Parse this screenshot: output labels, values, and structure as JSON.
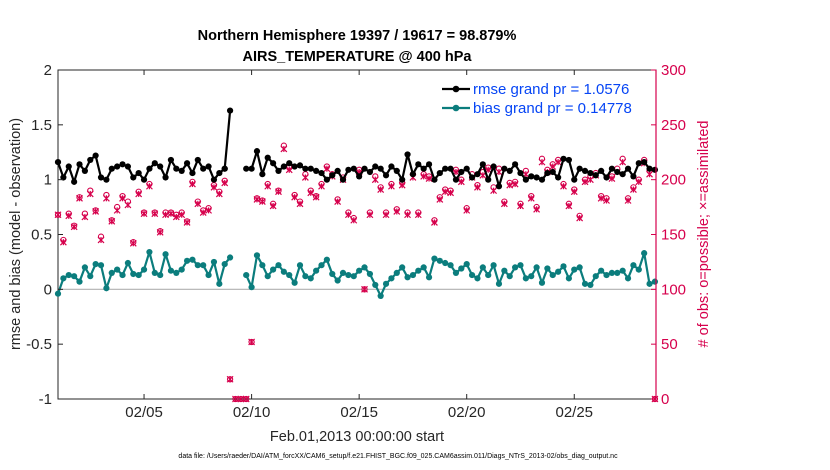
{
  "chart_data": {
    "type": "line",
    "title_line1": "Northern Hemisphere 19397 / 19617 = 98.879%",
    "title_line2": "AIRS_TEMPERATURE @ 400 hPa",
    "xlabel": "Feb.01,2013 00:00:00 start",
    "ylabel": "rmse and bias (model - observation)",
    "ylabel_right": "# of obs: o=possible; ×=assimilated",
    "footnote": "data file: /Users/raeder/DAI/ATM_forcXX/CAM6_setup/f.e21.FHIST_BGC.f09_025.CAM6assim.011/Diags_NTrS_2013-02/obs_diag_output.nc",
    "xlim": [
      1,
      28.8
    ],
    "ylim": [
      -1,
      2
    ],
    "ylim_right": [
      0,
      300
    ],
    "y_ticks": [
      "-1",
      "-0.5",
      "0",
      "0.5",
      "1",
      "1.5",
      "2"
    ],
    "y_tick_values": [
      -1,
      -0.5,
      0,
      0.5,
      1,
      1.5,
      2
    ],
    "y_right_ticks": [
      "0",
      "50",
      "100",
      "150",
      "200",
      "250",
      "300"
    ],
    "y_right_tick_values": [
      0,
      50,
      100,
      150,
      200,
      250,
      300
    ],
    "x_ticks": [
      "02/05",
      "02/10",
      "02/15",
      "02/20",
      "02/25"
    ],
    "x_tick_values": [
      5,
      10,
      15,
      20,
      25
    ],
    "colors": {
      "rmse": "#000000",
      "bias": "#0b7d7d",
      "obs": "#d6004c",
      "zero_line": "#b0b0b0",
      "legend_text": "#0645f5"
    },
    "legend": [
      {
        "name": "rmse grand pr = 1.0576",
        "key": "rmse"
      },
      {
        "name": "bias grand pr = 0.14778",
        "key": "bias"
      }
    ],
    "series": [
      {
        "name": "rmse",
        "segments": [
          {
            "x": [
              1.0,
              1.25,
              1.5,
              1.75,
              2.0,
              2.25,
              2.5,
              2.75,
              3.0,
              3.25,
              3.5,
              3.75,
              4.0,
              4.25,
              4.5,
              4.75,
              5.0,
              5.25,
              5.5,
              5.75,
              6.0,
              6.25,
              6.5,
              6.75,
              7.0,
              7.25,
              7.5,
              7.75,
              8.0,
              8.25,
              8.5,
              8.75
            ],
            "y": [
              1.16,
              1.02,
              1.12,
              0.98,
              1.14,
              1.08,
              1.18,
              1.22,
              1.02,
              1.0,
              1.1,
              1.12,
              1.14,
              1.12,
              1.02,
              1.06,
              1.0,
              1.1,
              1.15,
              1.12,
              1.02,
              1.18,
              1.1,
              1.08,
              1.15,
              1.06,
              1.18,
              1.1,
              1.12,
              1.0,
              1.06,
              1.1
            ]
          },
          {
            "x": [
              8.75,
              9.0
            ],
            "y": [
              1.1,
              1.63
            ]
          },
          {
            "x": [
              9.75,
              10.0,
              10.25,
              10.5,
              10.75,
              11.0,
              11.25,
              11.5,
              11.75,
              12.0,
              12.25,
              12.5,
              12.75,
              13.0,
              13.25,
              13.5,
              13.75,
              14.0,
              14.25,
              14.5,
              14.75,
              15.0,
              15.25,
              15.5,
              15.75,
              16.0,
              16.25,
              16.5,
              16.75,
              17.0,
              17.25,
              17.5,
              17.75,
              18.0,
              18.25,
              18.5,
              18.75,
              19.0,
              19.25,
              19.5,
              19.75,
              20.0,
              20.25,
              20.5,
              20.75,
              21.0,
              21.25,
              21.5,
              21.75,
              22.0,
              22.25,
              22.5,
              22.75,
              23.0,
              23.25,
              23.5,
              23.75,
              24.0,
              24.25,
              24.5,
              24.75,
              25.0,
              25.25,
              25.5,
              25.75,
              26.0,
              26.25,
              26.5,
              26.75,
              27.0,
              27.25,
              27.5,
              27.75,
              28.0,
              28.25,
              28.5,
              28.75
            ],
            "y": [
              1.1,
              1.1,
              1.26,
              1.05,
              1.2,
              1.15,
              1.08,
              1.12,
              1.15,
              1.12,
              1.13,
              1.1,
              1.1,
              1.08,
              1.06,
              1.0,
              1.04,
              1.08,
              1.0,
              1.09,
              1.1,
              1.03,
              1.1,
              1.07,
              1.12,
              1.1,
              1.04,
              1.12,
              1.08,
              1.0,
              1.23,
              1.05,
              1.14,
              1.1,
              1.14,
              1.0,
              1.06,
              1.1,
              1.1,
              1.0,
              1.07,
              1.1,
              1.02,
              1.05,
              1.14,
              1.0,
              1.12,
              0.94,
              1.1,
              1.08,
              1.14,
              1.06,
              1.0,
              1.03,
              1.02,
              1.0,
              1.06,
              1.07,
              1.02,
              1.19,
              1.18,
              1.0,
              1.1,
              1.08,
              1.06,
              1.04,
              1.08,
              1.02,
              1.1,
              1.07,
              1.05,
              1.1,
              1.03,
              1.15,
              1.16,
              1.1,
              1.09
            ]
          }
        ]
      },
      {
        "name": "bias",
        "segments": [
          {
            "x": [
              1.0,
              1.25,
              1.5,
              1.75,
              2.0,
              2.25,
              2.5,
              2.75,
              3.0,
              3.25,
              3.5,
              3.75,
              4.0,
              4.25,
              4.5,
              4.75,
              5.0,
              5.25,
              5.5,
              5.75,
              6.0,
              6.25,
              6.5,
              6.75,
              7.0,
              7.25,
              7.5,
              7.75,
              8.0,
              8.25,
              8.5,
              8.75,
              9.0
            ],
            "y": [
              -0.04,
              0.1,
              0.13,
              0.12,
              0.07,
              0.2,
              0.12,
              0.23,
              0.22,
              0.01,
              0.15,
              0.18,
              0.13,
              0.24,
              0.14,
              0.13,
              0.18,
              0.34,
              0.15,
              0.13,
              0.32,
              0.17,
              0.15,
              0.18,
              0.26,
              0.27,
              0.22,
              0.22,
              0.13,
              0.25,
              0.05,
              0.23,
              0.29
            ]
          },
          {
            "x": [
              9.75,
              10.0,
              10.25,
              10.5,
              10.75,
              11.0,
              11.25,
              11.5,
              11.75,
              12.0,
              12.25,
              12.5,
              12.75,
              13.0,
              13.25,
              13.5,
              13.75,
              14.0,
              14.25,
              14.5,
              14.75,
              15.0,
              15.25,
              15.5,
              15.75,
              16.0,
              16.25,
              16.5,
              16.75,
              17.0,
              17.25,
              17.5,
              17.75,
              18.0,
              18.25,
              18.5,
              18.75,
              19.0,
              19.25,
              19.5,
              19.75,
              20.0,
              20.25,
              20.5,
              20.75,
              21.0,
              21.25,
              21.5,
              21.75,
              22.0,
              22.25,
              22.5,
              22.75,
              23.0,
              23.25,
              23.5,
              23.75,
              24.0,
              24.25,
              24.5,
              24.75,
              25.0,
              25.25,
              25.5,
              25.75,
              26.0,
              26.25,
              26.5,
              26.75,
              27.0,
              27.25,
              27.5,
              27.75,
              28.0,
              28.25,
              28.5,
              28.75
            ],
            "y": [
              0.13,
              0.02,
              0.31,
              0.22,
              0.12,
              0.18,
              0.22,
              0.16,
              0.13,
              0.06,
              0.22,
              0.12,
              0.1,
              0.17,
              0.22,
              0.27,
              0.14,
              0.08,
              0.15,
              0.13,
              0.12,
              0.17,
              0.2,
              0.14,
              0.04,
              -0.06,
              0.05,
              0.1,
              0.15,
              0.2,
              0.11,
              0.13,
              0.17,
              0.2,
              0.11,
              0.28,
              0.26,
              0.24,
              0.22,
              0.15,
              0.19,
              0.23,
              0.13,
              0.1,
              0.2,
              0.13,
              0.22,
              0.05,
              0.17,
              0.12,
              0.2,
              0.22,
              0.1,
              0.12,
              0.2,
              0.06,
              0.19,
              0.13,
              0.16,
              0.21,
              0.1,
              0.18,
              0.2,
              0.05,
              0.04,
              0.12,
              0.17,
              0.13,
              0.15,
              0.15,
              0.17,
              0.1,
              0.22,
              0.18,
              0.33,
              0.05,
              0.07
            ]
          }
        ]
      },
      {
        "name": "obs_possible",
        "marker": "circle",
        "x": [
          1.0,
          1.25,
          1.5,
          1.75,
          2.0,
          2.25,
          2.5,
          2.75,
          3.0,
          3.25,
          3.5,
          3.75,
          4.0,
          4.25,
          4.5,
          4.75,
          5.0,
          5.25,
          5.5,
          5.75,
          6.0,
          6.25,
          6.5,
          6.75,
          7.0,
          7.25,
          7.5,
          7.75,
          8.0,
          8.25,
          8.5,
          8.75,
          9.0,
          9.25,
          9.5,
          9.75,
          10.0,
          10.25,
          10.5,
          10.75,
          11.0,
          11.25,
          11.5,
          11.75,
          12.0,
          12.25,
          12.5,
          12.75,
          13.0,
          13.25,
          13.5,
          13.75,
          14.0,
          14.25,
          14.5,
          14.75,
          15.0,
          15.25,
          15.5,
          15.75,
          16.0,
          16.25,
          16.5,
          16.75,
          17.0,
          17.25,
          17.5,
          17.75,
          18.0,
          18.25,
          18.5,
          18.75,
          19.0,
          19.25,
          19.5,
          19.75,
          20.0,
          20.25,
          20.5,
          20.75,
          21.0,
          21.25,
          21.5,
          21.75,
          22.0,
          22.25,
          22.5,
          22.75,
          23.0,
          23.25,
          23.5,
          23.75,
          24.0,
          24.25,
          24.5,
          24.75,
          25.0,
          25.25,
          25.5,
          25.75,
          26.0,
          26.25,
          26.5,
          26.75,
          27.0,
          27.25,
          27.5,
          27.75,
          28.0,
          28.25,
          28.5,
          28.75
        ],
        "y": [
          168,
          145,
          169,
          158,
          184,
          169,
          190,
          172,
          148,
          186,
          163,
          175,
          185,
          180,
          143,
          189,
          170,
          196,
          170,
          153,
          170,
          170,
          168,
          170,
          162,
          198,
          180,
          172,
          174,
          195,
          189,
          199,
          18,
          0,
          0,
          0,
          52,
          183,
          181,
          196,
          178,
          190,
          231,
          211,
          186,
          180,
          205,
          190,
          185,
          196,
          212,
          205,
          182,
          202,
          170,
          165,
          209,
          100,
          170,
          203,
          193,
          170,
          196,
          173,
          197,
          170,
          205,
          170,
          205,
          203,
          163,
          184,
          191,
          190,
          209,
          200,
          174,
          205,
          195,
          207,
          211,
          193,
          210,
          180,
          197,
          198,
          178,
          208,
          185,
          175,
          219,
          209,
          214,
          218,
          196,
          178,
          191,
          167,
          200,
          203,
          206,
          185,
          183,
          203,
          210,
          219,
          183,
          193,
          200,
          218,
          208,
          0
        ]
      },
      {
        "name": "obs_assimilated",
        "marker": "x",
        "x": [
          1.0,
          1.25,
          1.5,
          1.75,
          2.0,
          2.25,
          2.5,
          2.75,
          3.0,
          3.25,
          3.5,
          3.75,
          4.0,
          4.25,
          4.5,
          4.75,
          5.0,
          5.25,
          5.5,
          5.75,
          6.0,
          6.25,
          6.5,
          6.75,
          7.0,
          7.25,
          7.5,
          7.75,
          8.0,
          8.25,
          8.5,
          8.75,
          9.0,
          9.25,
          9.5,
          9.75,
          10.0,
          10.25,
          10.5,
          10.75,
          11.0,
          11.25,
          11.5,
          11.75,
          12.0,
          12.25,
          12.5,
          12.75,
          13.0,
          13.25,
          13.5,
          13.75,
          14.0,
          14.25,
          14.5,
          14.75,
          15.0,
          15.25,
          15.5,
          15.75,
          16.0,
          16.25,
          16.5,
          16.75,
          17.0,
          17.25,
          17.5,
          17.75,
          18.0,
          18.25,
          18.5,
          18.75,
          19.0,
          19.25,
          19.5,
          19.75,
          20.0,
          20.25,
          20.5,
          20.75,
          21.0,
          21.25,
          21.5,
          21.75,
          22.0,
          22.25,
          22.5,
          22.75,
          23.0,
          23.25,
          23.5,
          23.75,
          24.0,
          24.25,
          24.5,
          24.75,
          25.0,
          25.25,
          25.5,
          25.75,
          26.0,
          26.25,
          26.5,
          26.75,
          27.0,
          27.25,
          27.5,
          27.75,
          28.0,
          28.25,
          28.5,
          28.75
        ],
        "y": [
          168,
          143,
          167,
          157,
          183,
          166,
          187,
          171,
          145,
          183,
          162,
          172,
          183,
          177,
          142,
          187,
          169,
          194,
          169,
          152,
          168,
          169,
          166,
          168,
          161,
          196,
          178,
          170,
          172,
          193,
          187,
          197,
          18,
          0,
          0,
          0,
          52,
          182,
          180,
          194,
          176,
          189,
          228,
          209,
          184,
          178,
          202,
          188,
          184,
          194,
          210,
          203,
          180,
          200,
          168,
          163,
          207,
          100,
          168,
          200,
          191,
          168,
          194,
          171,
          195,
          168,
          202,
          168,
          203,
          201,
          161,
          182,
          189,
          188,
          207,
          198,
          172,
          202,
          193,
          204,
          209,
          190,
          207,
          178,
          195,
          196,
          176,
          205,
          183,
          173,
          216,
          207,
          212,
          216,
          194,
          176,
          189,
          165,
          198,
          200,
          204,
          183,
          181,
          201,
          207,
          216,
          181,
          191,
          198,
          215,
          205,
          0
        ]
      }
    ]
  }
}
